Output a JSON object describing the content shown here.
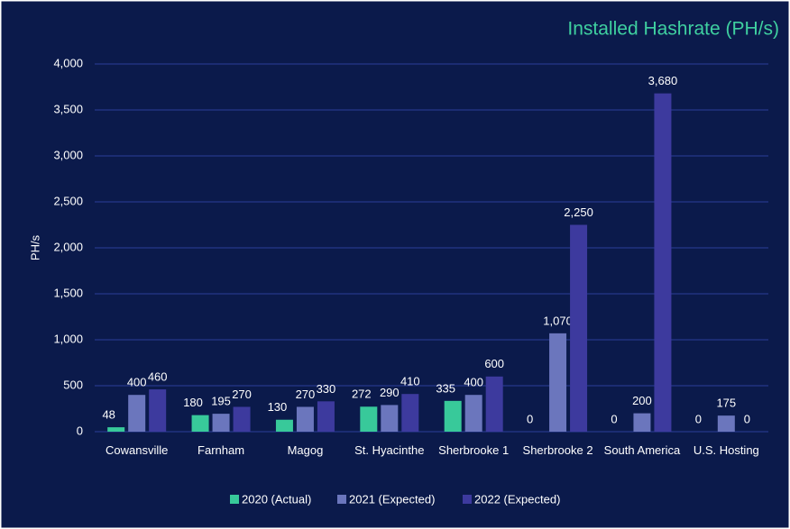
{
  "chart_data": {
    "type": "bar",
    "title": "Installed Hashrate (PH/s)",
    "y_label": "PH/s",
    "categories": [
      "Cowansville",
      "Farnham",
      "Magog",
      "St. Hyacinthe",
      "Sherbrooke 1",
      "Sherbrooke 2",
      "South America",
      "U.S. Hosting"
    ],
    "series": [
      {
        "name": "2020 (Actual)",
        "color": "#38c99a",
        "values": [
          48,
          180,
          130,
          272,
          335,
          0,
          0,
          0
        ]
      },
      {
        "name": "2021 (Expected)",
        "color": "#6b76bd",
        "values": [
          400,
          195,
          270,
          290,
          400,
          1070,
          200,
          175
        ],
        "value_labels": [
          "400",
          "195",
          "270",
          "290",
          "400",
          "1,070",
          "200",
          "175"
        ]
      },
      {
        "name": "2022 (Expected)",
        "color": "#3d3a9e",
        "values": [
          460,
          270,
          330,
          410,
          600,
          2250,
          3680,
          0
        ],
        "value_labels": [
          "460",
          "270",
          "330",
          "410",
          "600",
          "2,250",
          "3,680",
          "0"
        ]
      }
    ],
    "ylim": [
      0,
      4000
    ],
    "yticks": [
      0,
      500,
      {
        "value": 1000,
        "label": "1,000"
      },
      {
        "value": 1500,
        "label": "1,500"
      },
      {
        "value": 2000,
        "label": "2,000"
      },
      {
        "value": 2500,
        "label": "2,500"
      },
      {
        "value": 3000,
        "label": "3,000"
      },
      {
        "value": 3500,
        "label": "3,500"
      },
      {
        "value": 4000,
        "label": "4,000"
      }
    ],
    "grid": true,
    "legend": "bottom"
  }
}
